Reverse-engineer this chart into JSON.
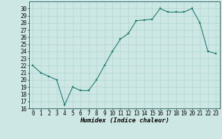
{
  "x": [
    0,
    1,
    2,
    3,
    4,
    5,
    6,
    7,
    8,
    9,
    10,
    11,
    12,
    13,
    14,
    15,
    16,
    17,
    18,
    19,
    20,
    21,
    22,
    23
  ],
  "y": [
    22,
    21,
    20.5,
    20,
    16.5,
    19,
    18.5,
    18.5,
    20,
    22,
    24,
    25.7,
    26.5,
    28.3,
    28.4,
    28.5,
    30,
    29.5,
    29.5,
    29.5,
    30,
    28,
    24,
    23.7
  ],
  "line_color": "#1a7a6e",
  "marker_color": "#1a7a6e",
  "bg_color": "#cde8e4",
  "grid_color": "#aed4cf",
  "xlabel": "Humidex (Indice chaleur)",
  "xlabel_fontsize": 6.5,
  "tick_fontsize": 5.5,
  "ylim": [
    16,
    31
  ],
  "xlim": [
    -0.5,
    23.5
  ],
  "yticks": [
    16,
    17,
    18,
    19,
    20,
    21,
    22,
    23,
    24,
    25,
    26,
    27,
    28,
    29,
    30
  ],
  "xticks": [
    0,
    1,
    2,
    3,
    4,
    5,
    6,
    7,
    8,
    9,
    10,
    11,
    12,
    13,
    14,
    15,
    16,
    17,
    18,
    19,
    20,
    21,
    22,
    23
  ]
}
